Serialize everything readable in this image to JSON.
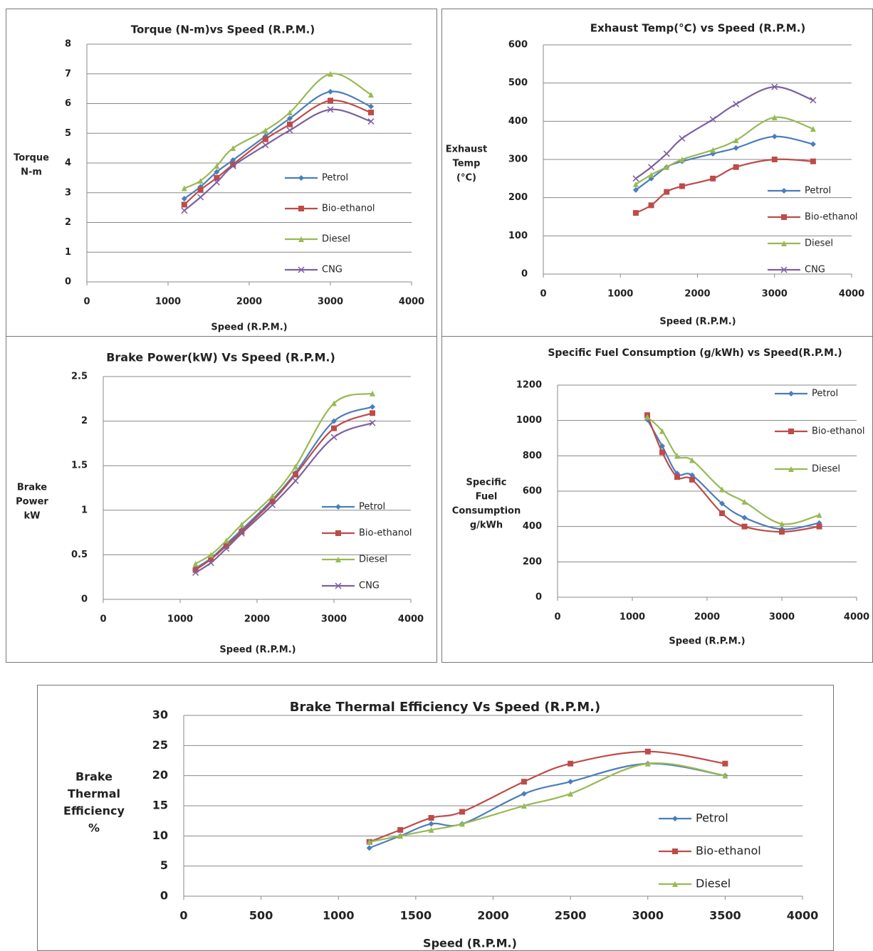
{
  "chart_data": [
    {
      "type": "line",
      "title": "Torque (N-m)vs Speed (R.P.M.)",
      "xlabel": "Speed (R.P.M.)",
      "ylabel": [
        "Torque",
        "N-m"
      ],
      "x": [
        1200,
        1400,
        1600,
        1800,
        2200,
        2500,
        3000,
        3500
      ],
      "series": [
        {
          "name": "Petrol",
          "color": "#4a7ebb",
          "values": [
            2.8,
            3.2,
            3.7,
            4.1,
            4.9,
            5.5,
            6.4,
            5.9
          ]
        },
        {
          "name": "Bio-ethanol",
          "color": "#be4b48",
          "values": [
            2.6,
            3.1,
            3.5,
            3.95,
            4.8,
            5.3,
            6.1,
            5.7
          ]
        },
        {
          "name": "Diesel",
          "color": "#98b954",
          "values": [
            3.15,
            3.4,
            3.9,
            4.5,
            5.1,
            5.7,
            7.0,
            6.3
          ]
        },
        {
          "name": "CNG",
          "color": "#7d60a0",
          "values": [
            2.4,
            2.85,
            3.35,
            3.9,
            4.6,
            5.1,
            5.8,
            5.4
          ]
        }
      ],
      "xlim": [
        0,
        4000
      ],
      "xticks": [
        0,
        1000,
        2000,
        3000,
        4000
      ],
      "ylim": [
        0,
        8
      ],
      "yticks": [
        0,
        1,
        2,
        3,
        4,
        5,
        6,
        7,
        8
      ],
      "grid": true
    },
    {
      "type": "line",
      "title": "Exhaust Temp(°C) vs Speed (R.P.M.)",
      "xlabel": "Speed (R.P.M.)",
      "ylabel": [
        "Exhaust",
        "Temp",
        "(°C)"
      ],
      "x": [
        1200,
        1400,
        1600,
        1800,
        2200,
        2500,
        3000,
        3500
      ],
      "series": [
        {
          "name": "Petrol",
          "color": "#4a7ebb",
          "values": [
            220,
            250,
            280,
            295,
            315,
            330,
            360,
            340
          ]
        },
        {
          "name": "Bio-ethanol",
          "color": "#be4b48",
          "values": [
            160,
            180,
            215,
            230,
            250,
            280,
            300,
            295
          ]
        },
        {
          "name": "Diesel",
          "color": "#98b954",
          "values": [
            235,
            260,
            280,
            300,
            325,
            350,
            410,
            380
          ]
        },
        {
          "name": "CNG",
          "color": "#7d60a0",
          "values": [
            250,
            280,
            315,
            355,
            405,
            445,
            490,
            455
          ]
        }
      ],
      "xlim": [
        0,
        4000
      ],
      "xticks": [
        0,
        1000,
        2000,
        3000,
        4000
      ],
      "ylim": [
        0,
        600
      ],
      "yticks": [
        0,
        100,
        200,
        300,
        400,
        500,
        600
      ],
      "grid": true
    },
    {
      "type": "line",
      "title": "Brake Power(kW) Vs Speed (R.P.M.)",
      "xlabel": "Speed (R.P.M.)",
      "ylabel": [
        "Brake",
        "Power",
        "kW"
      ],
      "x": [
        1200,
        1400,
        1600,
        1800,
        2200,
        2500,
        3000,
        3500
      ],
      "series": [
        {
          "name": "Petrol",
          "color": "#4a7ebb",
          "values": [
            0.35,
            0.46,
            0.62,
            0.78,
            1.12,
            1.42,
            2.0,
            2.16
          ]
        },
        {
          "name": "Bio-ethanol",
          "color": "#be4b48",
          "values": [
            0.33,
            0.45,
            0.6,
            0.76,
            1.1,
            1.4,
            1.92,
            2.09
          ]
        },
        {
          "name": "Diesel",
          "color": "#98b954",
          "values": [
            0.4,
            0.5,
            0.66,
            0.84,
            1.16,
            1.49,
            2.2,
            2.31
          ]
        },
        {
          "name": "CNG",
          "color": "#7d60a0",
          "values": [
            0.3,
            0.41,
            0.57,
            0.74,
            1.06,
            1.33,
            1.82,
            1.98
          ]
        }
      ],
      "xlim": [
        0,
        4000
      ],
      "xticks": [
        0,
        1000,
        2000,
        3000,
        4000
      ],
      "ylim": [
        0,
        2.5
      ],
      "yticks": [
        0,
        0.5,
        1,
        1.5,
        2,
        2.5
      ],
      "grid": true
    },
    {
      "type": "line",
      "title": "Specific Fuel Consumption (g/kWh) vs Speed(R.P.M.)",
      "xlabel": "Speed (R.P.M.)",
      "ylabel": [
        "Specific",
        "Fuel",
        "Consumption",
        "g/kWh"
      ],
      "x": [
        1200,
        1400,
        1600,
        1800,
        2200,
        2500,
        3000,
        3500
      ],
      "series": [
        {
          "name": "Petrol",
          "color": "#4a7ebb",
          "values": [
            1005,
            855,
            700,
            690,
            530,
            450,
            385,
            420
          ]
        },
        {
          "name": "Bio-ethanol",
          "color": "#be4b48",
          "values": [
            1030,
            820,
            680,
            665,
            475,
            400,
            370,
            400
          ]
        },
        {
          "name": "Diesel",
          "color": "#98b954",
          "values": [
            1020,
            940,
            800,
            775,
            610,
            540,
            415,
            465
          ]
        }
      ],
      "xlim": [
        0,
        4000
      ],
      "xticks": [
        0,
        1000,
        2000,
        3000,
        4000
      ],
      "ylim": [
        0,
        1200
      ],
      "yticks": [
        0,
        200,
        400,
        600,
        800,
        1000,
        1200
      ],
      "grid": true
    },
    {
      "type": "line",
      "title": "Brake Thermal Efficiency Vs Speed (R.P.M.)",
      "xlabel": "Speed (R.P.M.)",
      "ylabel": [
        "Brake",
        "Thermal",
        "Efficiency",
        "%"
      ],
      "x": [
        1200,
        1400,
        1600,
        1800,
        2200,
        2500,
        3000,
        3500
      ],
      "series": [
        {
          "name": "Petrol",
          "color": "#4a7ebb",
          "values": [
            8,
            10,
            12,
            12,
            17,
            19,
            22,
            20
          ]
        },
        {
          "name": "Bio-ethanol",
          "color": "#be4b48",
          "values": [
            9,
            11,
            13,
            14,
            19,
            22,
            24,
            22
          ]
        },
        {
          "name": "Diesel",
          "color": "#98b954",
          "values": [
            9,
            10,
            11,
            12,
            15,
            17,
            22,
            20
          ]
        }
      ],
      "xlim": [
        0,
        4000
      ],
      "xticks": [
        0,
        500,
        1000,
        1500,
        2000,
        2500,
        3000,
        3500,
        4000
      ],
      "ylim": [
        0,
        30
      ],
      "yticks": [
        0,
        5,
        10,
        15,
        20,
        25,
        30
      ],
      "grid": true
    }
  ]
}
